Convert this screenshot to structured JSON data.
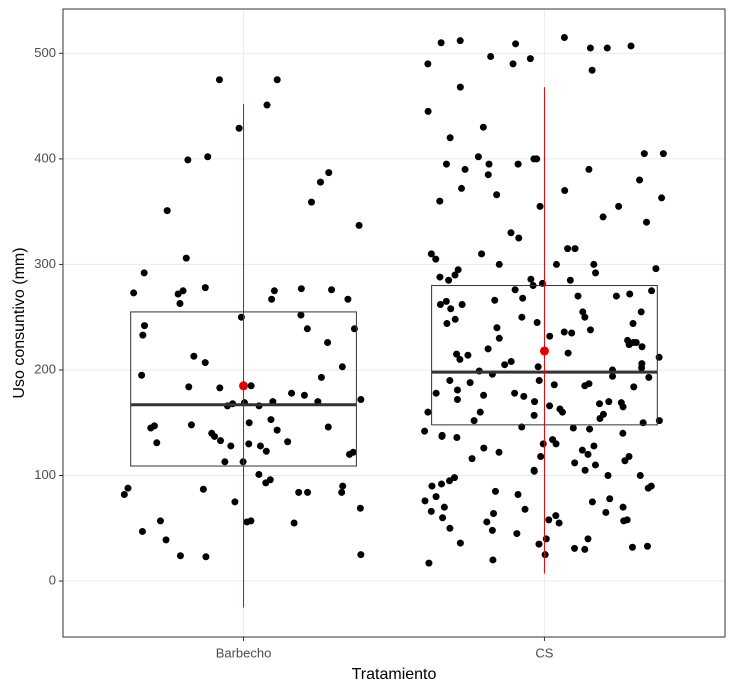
{
  "chart_data": {
    "type": "box_jitter",
    "x_label": "Tratamiento",
    "y_label": "Uso consuntivo (mm)",
    "categories": [
      "Barbecho",
      "CS"
    ],
    "ylim": [
      -53,
      542
    ],
    "yticks": [
      0,
      100,
      200,
      300,
      400,
      500
    ],
    "grid": true,
    "point_color": "#000000",
    "box_color": "#333333",
    "mean_color": "#e00000",
    "q1": [
      109,
      148
    ],
    "median": [
      167,
      198
    ],
    "q3": [
      255,
      280
    ],
    "mean": [
      185,
      218
    ],
    "range_low": [
      -25,
      7
    ],
    "range_high": [
      452,
      468
    ],
    "points": [
      [
        351,
        277,
        166,
        168,
        184,
        193,
        176,
        169,
        150,
        130,
        88,
        93,
        96,
        183,
        226,
        207,
        113,
        24,
        25,
        55,
        276,
        146,
        273,
        275,
        267,
        272,
        84,
        57,
        90,
        39,
        23,
        101,
        140,
        133,
        128,
        145,
        143,
        239,
        275,
        306,
        359,
        387,
        475,
        47,
        113,
        170,
        252,
        242,
        166,
        69,
        84,
        429,
        402,
        250,
        195,
        203,
        213,
        278,
        267,
        123,
        56,
        148,
        120,
        122,
        131,
        178,
        233,
        172,
        185,
        475,
        451,
        128,
        75,
        82,
        84,
        87,
        263,
        378,
        337,
        399,
        292,
        57,
        137,
        132,
        239,
        170,
        153,
        147
      ],
      [
        395,
        363,
        285,
        286,
        270,
        250,
        230,
        210,
        178,
        170,
        160,
        152,
        130,
        118,
        100,
        90,
        70,
        65,
        35,
        402,
        395,
        360,
        445,
        515,
        468,
        505,
        484,
        497,
        510,
        505,
        495,
        490,
        512,
        509,
        507,
        490,
        430,
        420,
        405,
        400,
        390,
        380,
        372,
        366,
        355,
        345,
        330,
        325,
        310,
        305,
        300,
        296,
        290,
        282,
        275,
        268,
        262,
        258,
        255,
        250,
        245,
        240,
        236,
        232,
        228,
        224,
        220,
        216,
        212,
        208,
        205,
        202,
        199,
        196,
        193,
        190,
        187,
        184,
        181,
        178,
        175,
        172,
        169,
        166,
        163,
        160,
        157,
        154,
        150,
        146,
        142,
        138,
        134,
        130,
        126,
        122,
        118,
        114,
        110,
        105,
        100,
        95,
        90,
        85,
        80,
        75,
        70,
        66,
        62,
        58,
        55,
        50,
        45,
        40,
        33,
        30,
        25,
        20,
        17,
        310,
        300,
        295,
        288,
        272,
        265,
        248,
        238,
        226,
        214,
        200,
        194,
        186,
        176,
        168,
        158,
        144,
        136,
        124,
        112,
        98,
        88,
        78,
        64,
        56,
        40,
        31,
        300,
        276,
        262,
        244,
        222,
        206,
        188,
        170,
        152,
        140,
        128,
        116,
        104,
        92,
        76,
        60,
        48,
        36,
        395,
        385,
        370,
        355,
        340,
        315,
        285,
        270,
        255,
        235,
        215,
        190,
        160,
        145,
        120,
        105,
        82,
        68,
        57,
        58,
        32,
        405,
        400,
        390,
        315,
        292,
        280,
        266,
        244,
        226,
        203,
        185,
        165,
        137
      ]
    ]
  }
}
